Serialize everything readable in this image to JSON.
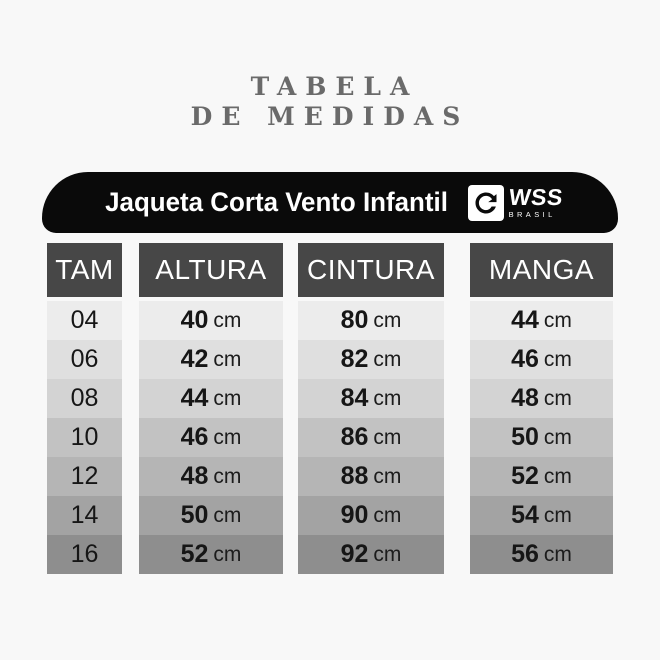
{
  "page": {
    "background": "#f8f8f8"
  },
  "title": {
    "line1": "TABELA",
    "line2": "DE MEDIDAS",
    "color": "#6a6a6a"
  },
  "banner": {
    "product": "Jaqueta Corta Vento Infantil",
    "bg": "#0a0a0a",
    "text_color": "#ffffff",
    "brand": "WSS",
    "brand_sub": "BRASIL",
    "icon": "wave-swirl-icon"
  },
  "table": {
    "header_bg": "#474747",
    "header_text_color": "#ffffff",
    "unit": "cm",
    "columns": [
      {
        "key": "tam",
        "label": "TAM"
      },
      {
        "key": "altura",
        "label": "ALTURA"
      },
      {
        "key": "cintura",
        "label": "CINTURA"
      },
      {
        "key": "manga",
        "label": "MANGA"
      }
    ],
    "rows": [
      {
        "tam": "04",
        "altura": "40",
        "cintura": "80",
        "manga": "44",
        "bg": "#ececec"
      },
      {
        "tam": "06",
        "altura": "42",
        "cintura": "82",
        "manga": "46",
        "bg": "#dfdfdf"
      },
      {
        "tam": "08",
        "altura": "44",
        "cintura": "84",
        "manga": "48",
        "bg": "#d3d3d3"
      },
      {
        "tam": "10",
        "altura": "46",
        "cintura": "86",
        "manga": "50",
        "bg": "#c2c2c2"
      },
      {
        "tam": "12",
        "altura": "48",
        "cintura": "88",
        "manga": "52",
        "bg": "#b5b5b5"
      },
      {
        "tam": "14",
        "altura": "50",
        "cintura": "90",
        "manga": "54",
        "bg": "#a3a3a3"
      },
      {
        "tam": "16",
        "altura": "52",
        "cintura": "92",
        "manga": "56",
        "bg": "#8e8e8e"
      }
    ]
  },
  "chart_data": {
    "type": "table",
    "title": "TABELA DE MEDIDAS",
    "subtitle": "Jaqueta Corta Vento Infantil",
    "brand": "WSS BRASIL",
    "columns": [
      "TAM",
      "ALTURA",
      "CINTURA",
      "MANGA"
    ],
    "unit": "cm",
    "rows": [
      [
        "04",
        40,
        80,
        44
      ],
      [
        "06",
        42,
        82,
        46
      ],
      [
        "08",
        44,
        84,
        48
      ],
      [
        "10",
        46,
        86,
        50
      ],
      [
        "12",
        48,
        88,
        52
      ],
      [
        "14",
        50,
        90,
        54
      ],
      [
        "16",
        52,
        92,
        56
      ]
    ]
  }
}
